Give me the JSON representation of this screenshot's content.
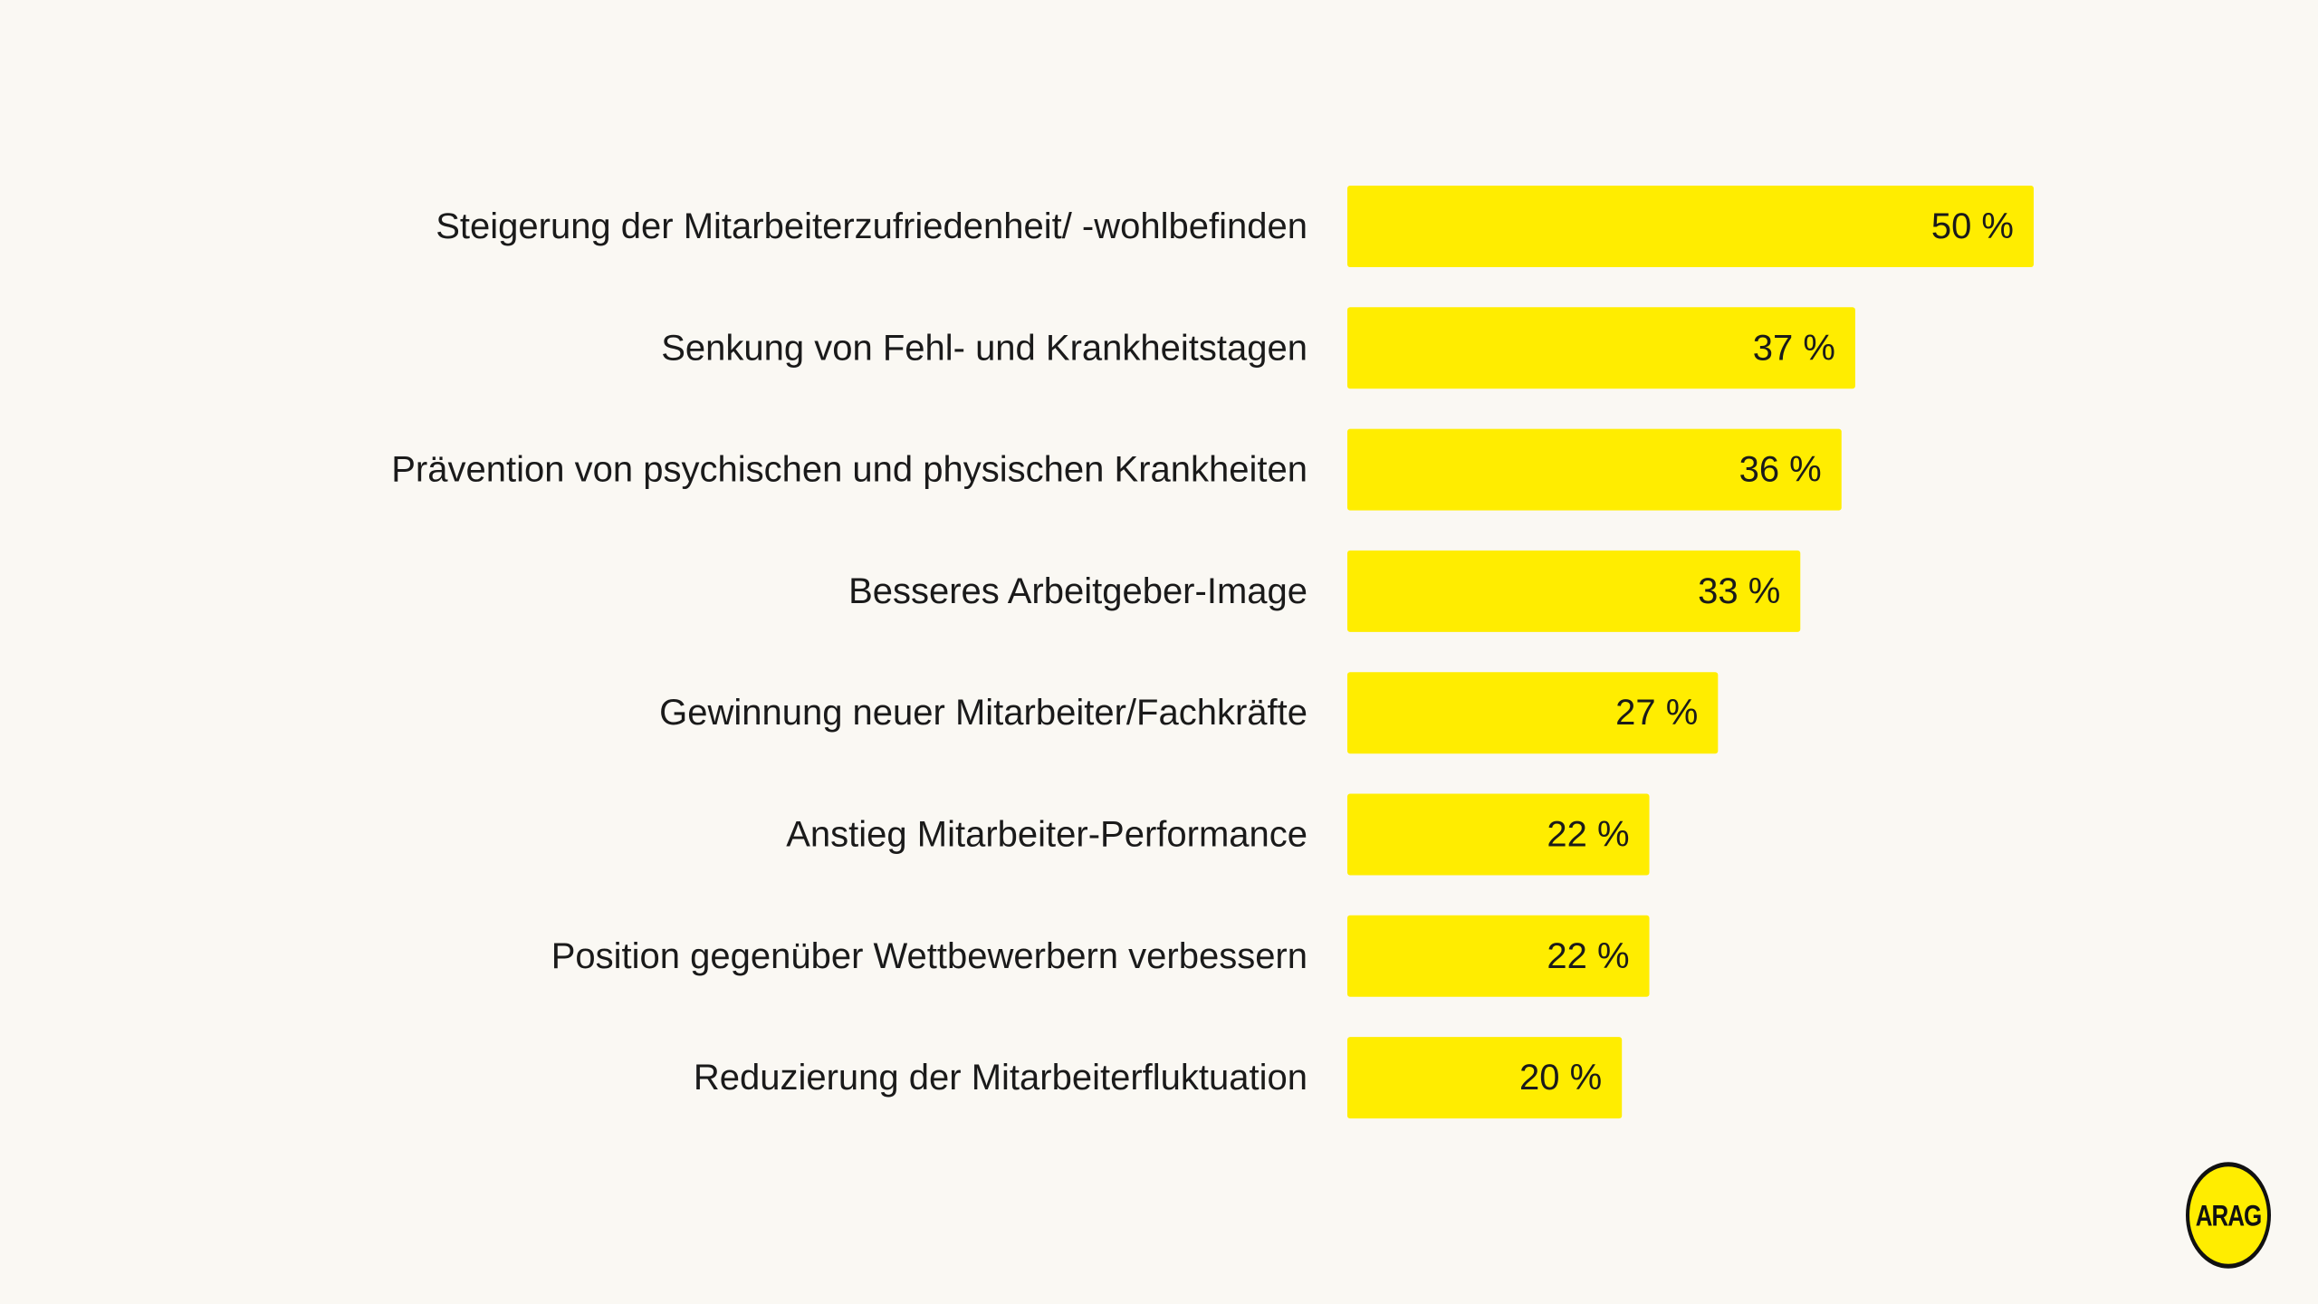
{
  "chart_data": {
    "type": "bar",
    "orientation": "horizontal",
    "categories": [
      "Steigerung der Mitarbeiterzufriedenheit/ -wohlbefinden",
      "Senkung von Fehl- und Krankheitstagen",
      "Prävention von psychischen und physischen Krankheiten",
      "Besseres Arbeitgeber-Image",
      "Gewinnung neuer Mitarbeiter/Fachkräfte",
      "Anstieg Mitarbeiter-Performance",
      "Position gegenüber Wettbewerbern verbessern",
      "Reduzierung der Mitarbeiterfluktuation"
    ],
    "values": [
      50,
      37,
      36,
      33,
      27,
      22,
      22,
      20
    ],
    "value_labels": [
      "50 %",
      "37 %",
      "36 %",
      "33 %",
      "27 %",
      "22 %",
      "22 %",
      "20 %"
    ],
    "bar_color": "#ffed00",
    "background_color": "#faf8f3",
    "grid": false,
    "legend": "none"
  },
  "logo": {
    "text": "ARAG",
    "color": "#ffed00"
  }
}
